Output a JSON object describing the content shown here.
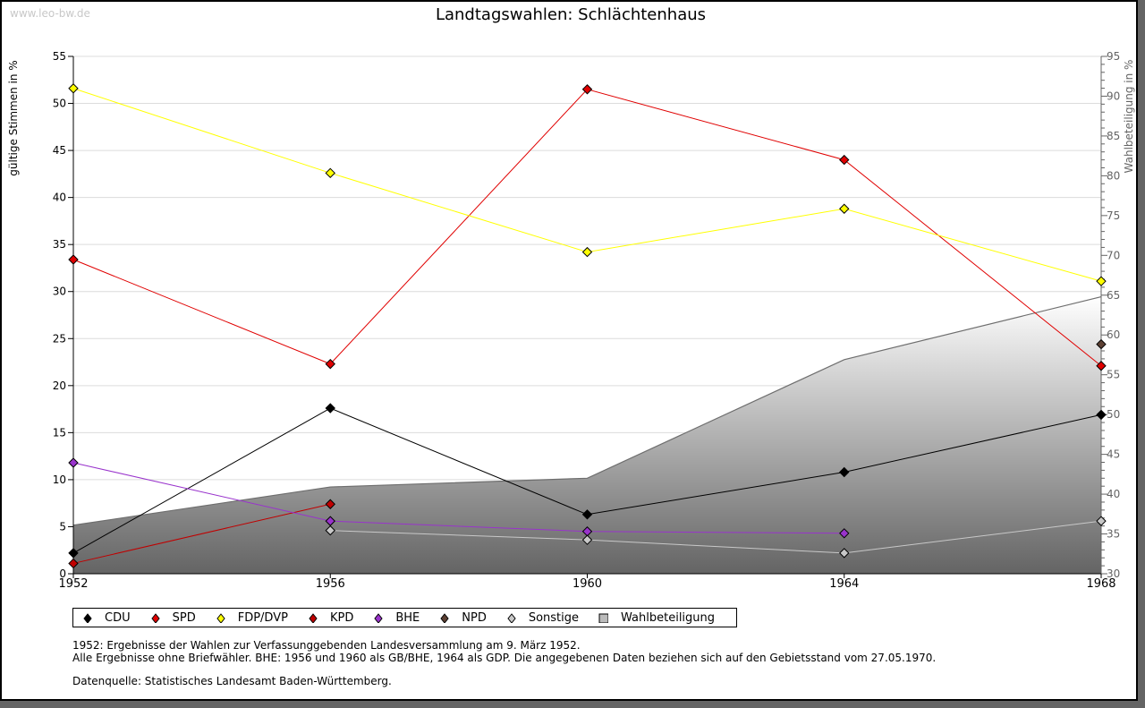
{
  "watermark": "www.leo-bw.de",
  "chart_data": {
    "type": "line",
    "title": "Landtagswahlen: Schlächtenhaus",
    "ylabel": "gültige Stimmen in %",
    "y2label": "Wahlbeteiligung in %",
    "x": [
      1952,
      1956,
      1960,
      1964,
      1968
    ],
    "x_tick_labels": [
      "1952",
      "1956",
      "1960",
      "1964",
      "1968"
    ],
    "ylim": [
      0,
      55
    ],
    "y_ticks": [
      0,
      5,
      10,
      15,
      20,
      25,
      30,
      35,
      40,
      45,
      50,
      55
    ],
    "y2lim": [
      30,
      95
    ],
    "y2_ticks": [
      30,
      35,
      40,
      45,
      50,
      55,
      60,
      65,
      70,
      75,
      80,
      85,
      90,
      95
    ],
    "grid": true,
    "legend_position": "bottom",
    "area": {
      "name": "Wahlbeteiligung",
      "axis": "right",
      "values": [
        36.1,
        40.9,
        42.0,
        56.9,
        64.8
      ]
    },
    "series": [
      {
        "name": "CDU",
        "color": "#000000",
        "values": [
          2.2,
          17.6,
          6.3,
          10.8,
          16.9
        ]
      },
      {
        "name": "SPD",
        "color": "#e00000",
        "values": [
          33.4,
          22.3,
          51.5,
          44.0,
          22.1
        ]
      },
      {
        "name": "FDP/DVP",
        "color": "#ffff00",
        "values": [
          51.6,
          42.6,
          34.2,
          38.8,
          31.1
        ]
      },
      {
        "name": "KPD",
        "color": "#c00000",
        "values": [
          1.1,
          7.4,
          null,
          null,
          null
        ]
      },
      {
        "name": "BHE",
        "color": "#9933cc",
        "values": [
          11.8,
          5.6,
          4.5,
          4.3,
          null
        ]
      },
      {
        "name": "NPD",
        "color": "#5c4033",
        "values": [
          null,
          null,
          null,
          null,
          24.4
        ]
      },
      {
        "name": "Sonstige",
        "color": "#c8c8c8",
        "values": [
          null,
          4.6,
          3.6,
          2.2,
          5.6
        ]
      }
    ]
  },
  "legend": [
    {
      "label": "CDU",
      "color": "#000000",
      "shape": "diamond"
    },
    {
      "label": "SPD",
      "color": "#e00000",
      "shape": "diamond"
    },
    {
      "label": "FDP/DVP",
      "color": "#ffff00",
      "shape": "diamond"
    },
    {
      "label": "KPD",
      "color": "#c00000",
      "shape": "diamond"
    },
    {
      "label": "BHE",
      "color": "#9933cc",
      "shape": "diamond"
    },
    {
      "label": "NPD",
      "color": "#5c4033",
      "shape": "diamond"
    },
    {
      "label": "Sonstige",
      "color": "#c8c8c8",
      "shape": "diamond"
    },
    {
      "label": "Wahlbeteiligung",
      "color": "#888888",
      "shape": "square"
    }
  ],
  "notes": {
    "line1": "1952: Ergebnisse der Wahlen zur Verfassunggebenden Landesversammlung am 9. März 1952.",
    "line2": "Alle Ergebnisse ohne Briefwähler. BHE: 1956 und 1960 als GB/BHE, 1964 als GDP. Die angegebenen Daten beziehen sich auf den Gebietsstand vom 27.05.1970.",
    "source": "Datenquelle: Statistisches Landesamt Baden-Württemberg."
  }
}
